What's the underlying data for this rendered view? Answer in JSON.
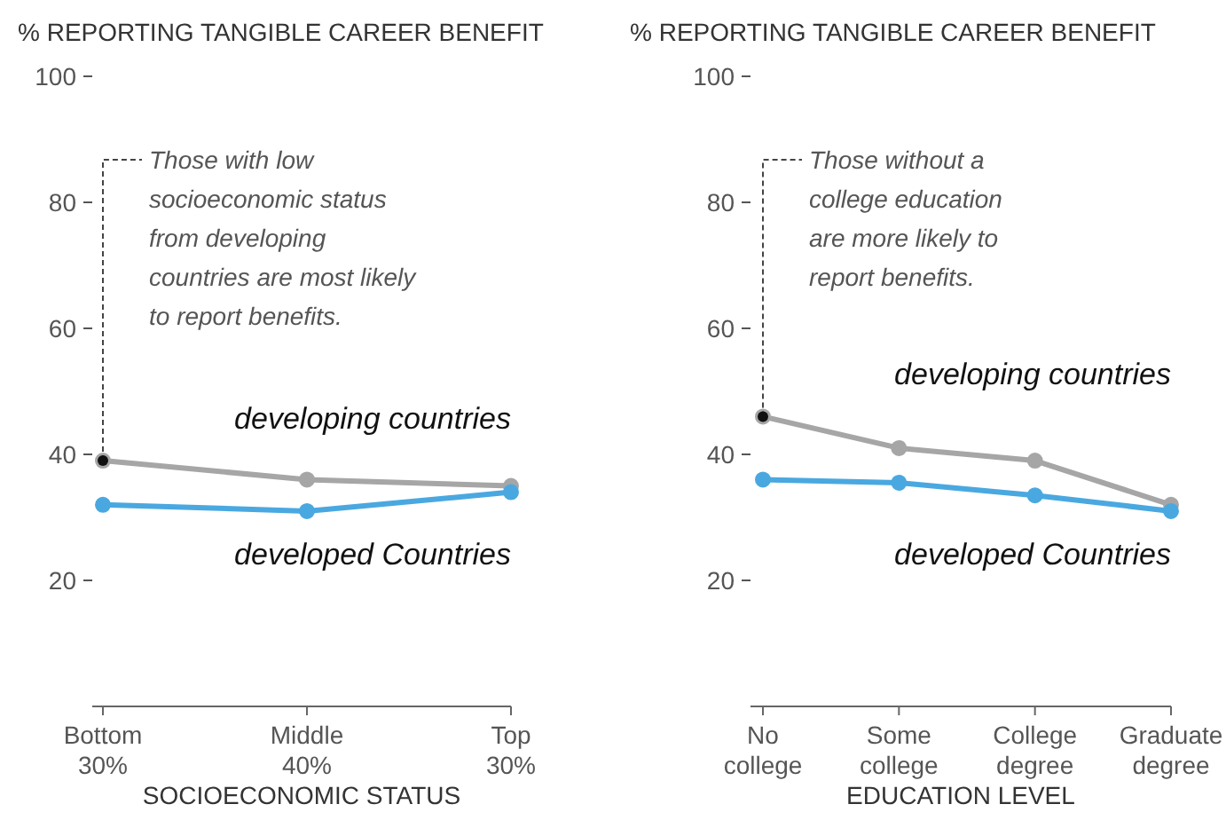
{
  "chart_data": [
    {
      "type": "line",
      "ylabel": "% REPORTING TANGIBLE CAREER BENEFIT",
      "xlabel": "SOCIOECONOMIC STATUS",
      "categories": [
        "Bottom 30%",
        "Middle 40%",
        "Top 30%"
      ],
      "ylim": [
        0,
        100
      ],
      "yticks": [
        20,
        40,
        60,
        80,
        100
      ],
      "grid": false,
      "legend": false,
      "marker": "circle",
      "line_style": "solid",
      "series": [
        {
          "name": "developing countries",
          "color": "#a6a6a6",
          "values": [
            39,
            36,
            35
          ]
        },
        {
          "name": "developed Countries",
          "color": "#4aa8e0",
          "values": [
            32,
            31,
            34
          ]
        }
      ],
      "annotations": [
        {
          "text": "Those with low\nsocioeconomic status\nfrom developing\ncountries are most likely\nto report benefits.",
          "x": "Bottom 30%",
          "y": 39
        }
      ]
    },
    {
      "type": "line",
      "ylabel": "% REPORTING TANGIBLE CAREER BENEFIT",
      "xlabel": "EDUCATION LEVEL",
      "categories": [
        "No college",
        "Some college",
        "College degree",
        "Graduate degree"
      ],
      "ylim": [
        0,
        100
      ],
      "yticks": [
        20,
        40,
        60,
        80,
        100
      ],
      "grid": false,
      "legend": false,
      "marker": "circle",
      "line_style": "solid",
      "series": [
        {
          "name": "developing countries",
          "color": "#a6a6a6",
          "values": [
            46,
            41,
            39,
            32
          ]
        },
        {
          "name": "developed Countries",
          "color": "#4aa8e0",
          "values": [
            36,
            35.5,
            33.5,
            31
          ]
        }
      ],
      "annotations": [
        {
          "text": "Those without a\ncollege education\nare more likely to\nreport benefits.",
          "x": "No college",
          "y": 46
        }
      ]
    }
  ]
}
